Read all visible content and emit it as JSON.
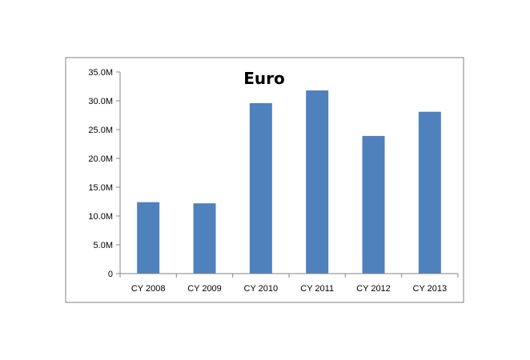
{
  "chart_data": {
    "type": "bar",
    "title": "Euro",
    "categories": [
      "CY 2008",
      "CY 2009",
      "CY 2010",
      "CY 2011",
      "CY 2012",
      "CY 2013"
    ],
    "values": [
      12400000,
      12200000,
      29600000,
      31800000,
      23900000,
      28100000
    ],
    "ylim": [
      0,
      35000000
    ],
    "yticks": [
      0,
      5000000,
      10000000,
      15000000,
      20000000,
      25000000,
      30000000,
      35000000
    ],
    "ytick_labels": [
      "0",
      "5.0M",
      "10.0M",
      "15.0M",
      "20.0M",
      "25.0M",
      "30.0M",
      "35.0M"
    ],
    "xlabel": "",
    "ylabel": "",
    "grid": false,
    "legend": "none",
    "bar_color": "#4f81bd",
    "frame_color": "#808080"
  }
}
